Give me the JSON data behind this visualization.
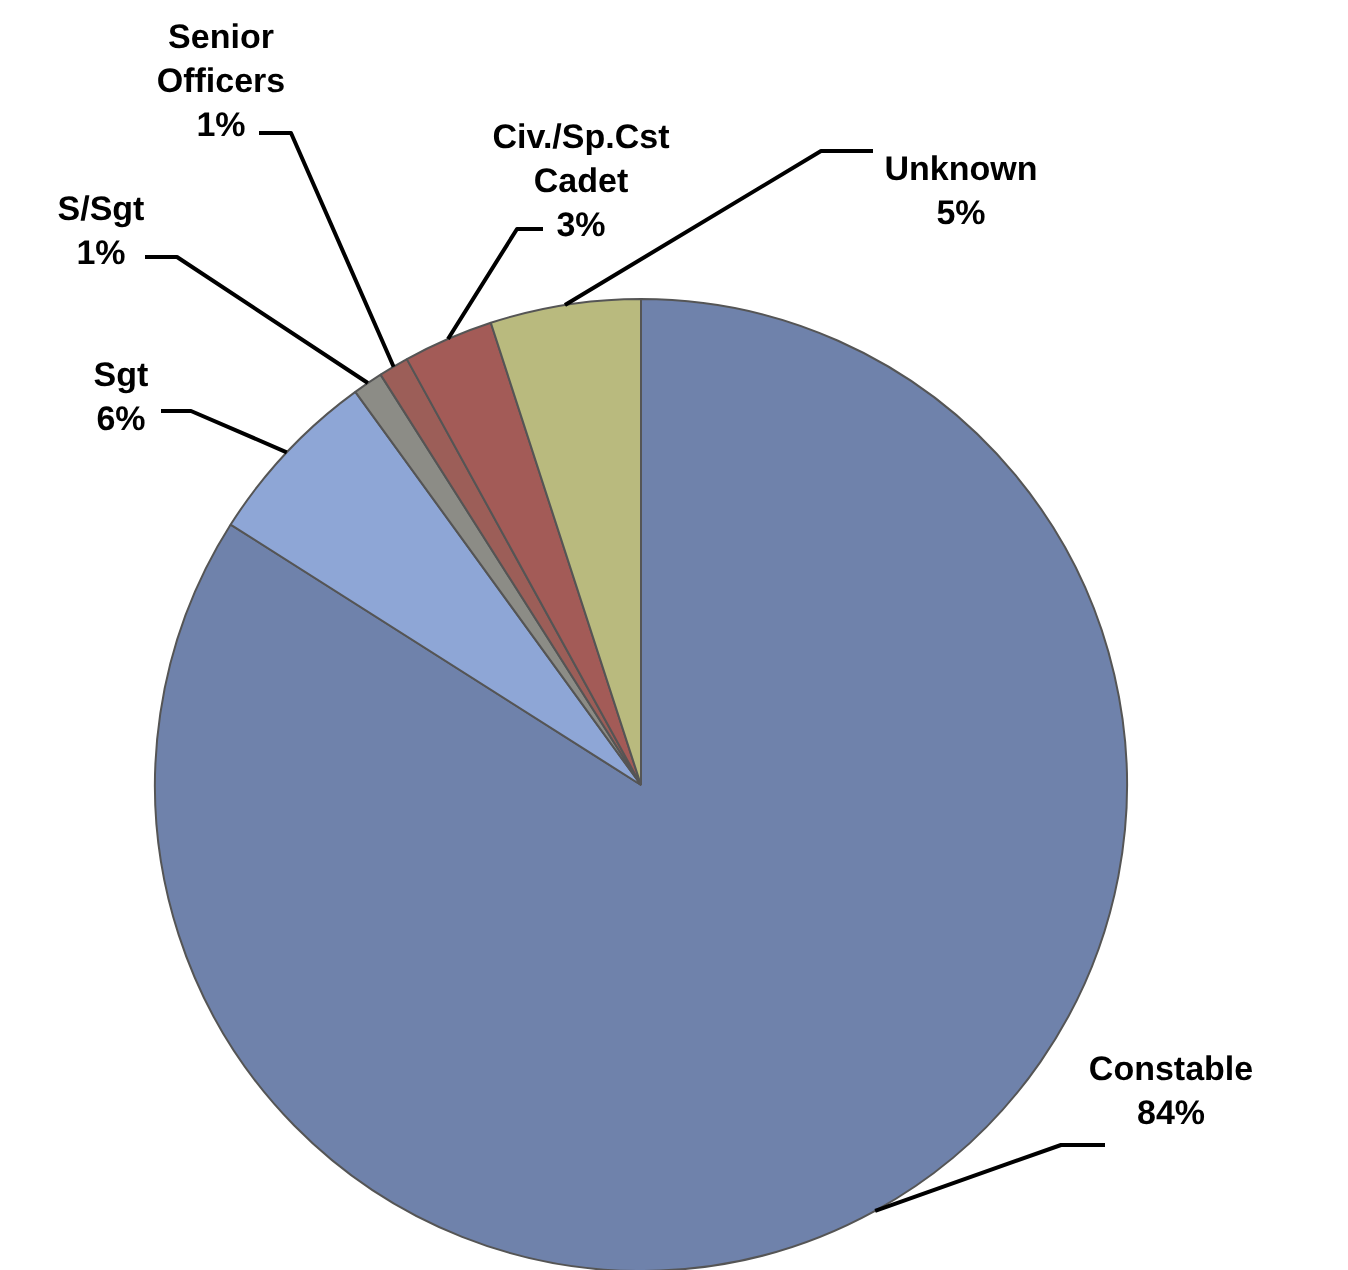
{
  "chart_data": {
    "type": "pie",
    "categories": [
      "Constable",
      "Sgt",
      "S/Sgt",
      "Senior Officers",
      "Civ./Sp.Cst Cadet",
      "Unknown"
    ],
    "values": [
      84,
      6,
      1,
      1,
      3,
      5
    ],
    "value_labels": [
      "84%",
      "6%",
      "1%",
      "1%",
      "3%",
      "5%"
    ],
    "colors": [
      "#6f82ab",
      "#8ea6d6",
      "#8c8c86",
      "#9c5e58",
      "#a35b57",
      "#b9ba7e"
    ]
  }
}
